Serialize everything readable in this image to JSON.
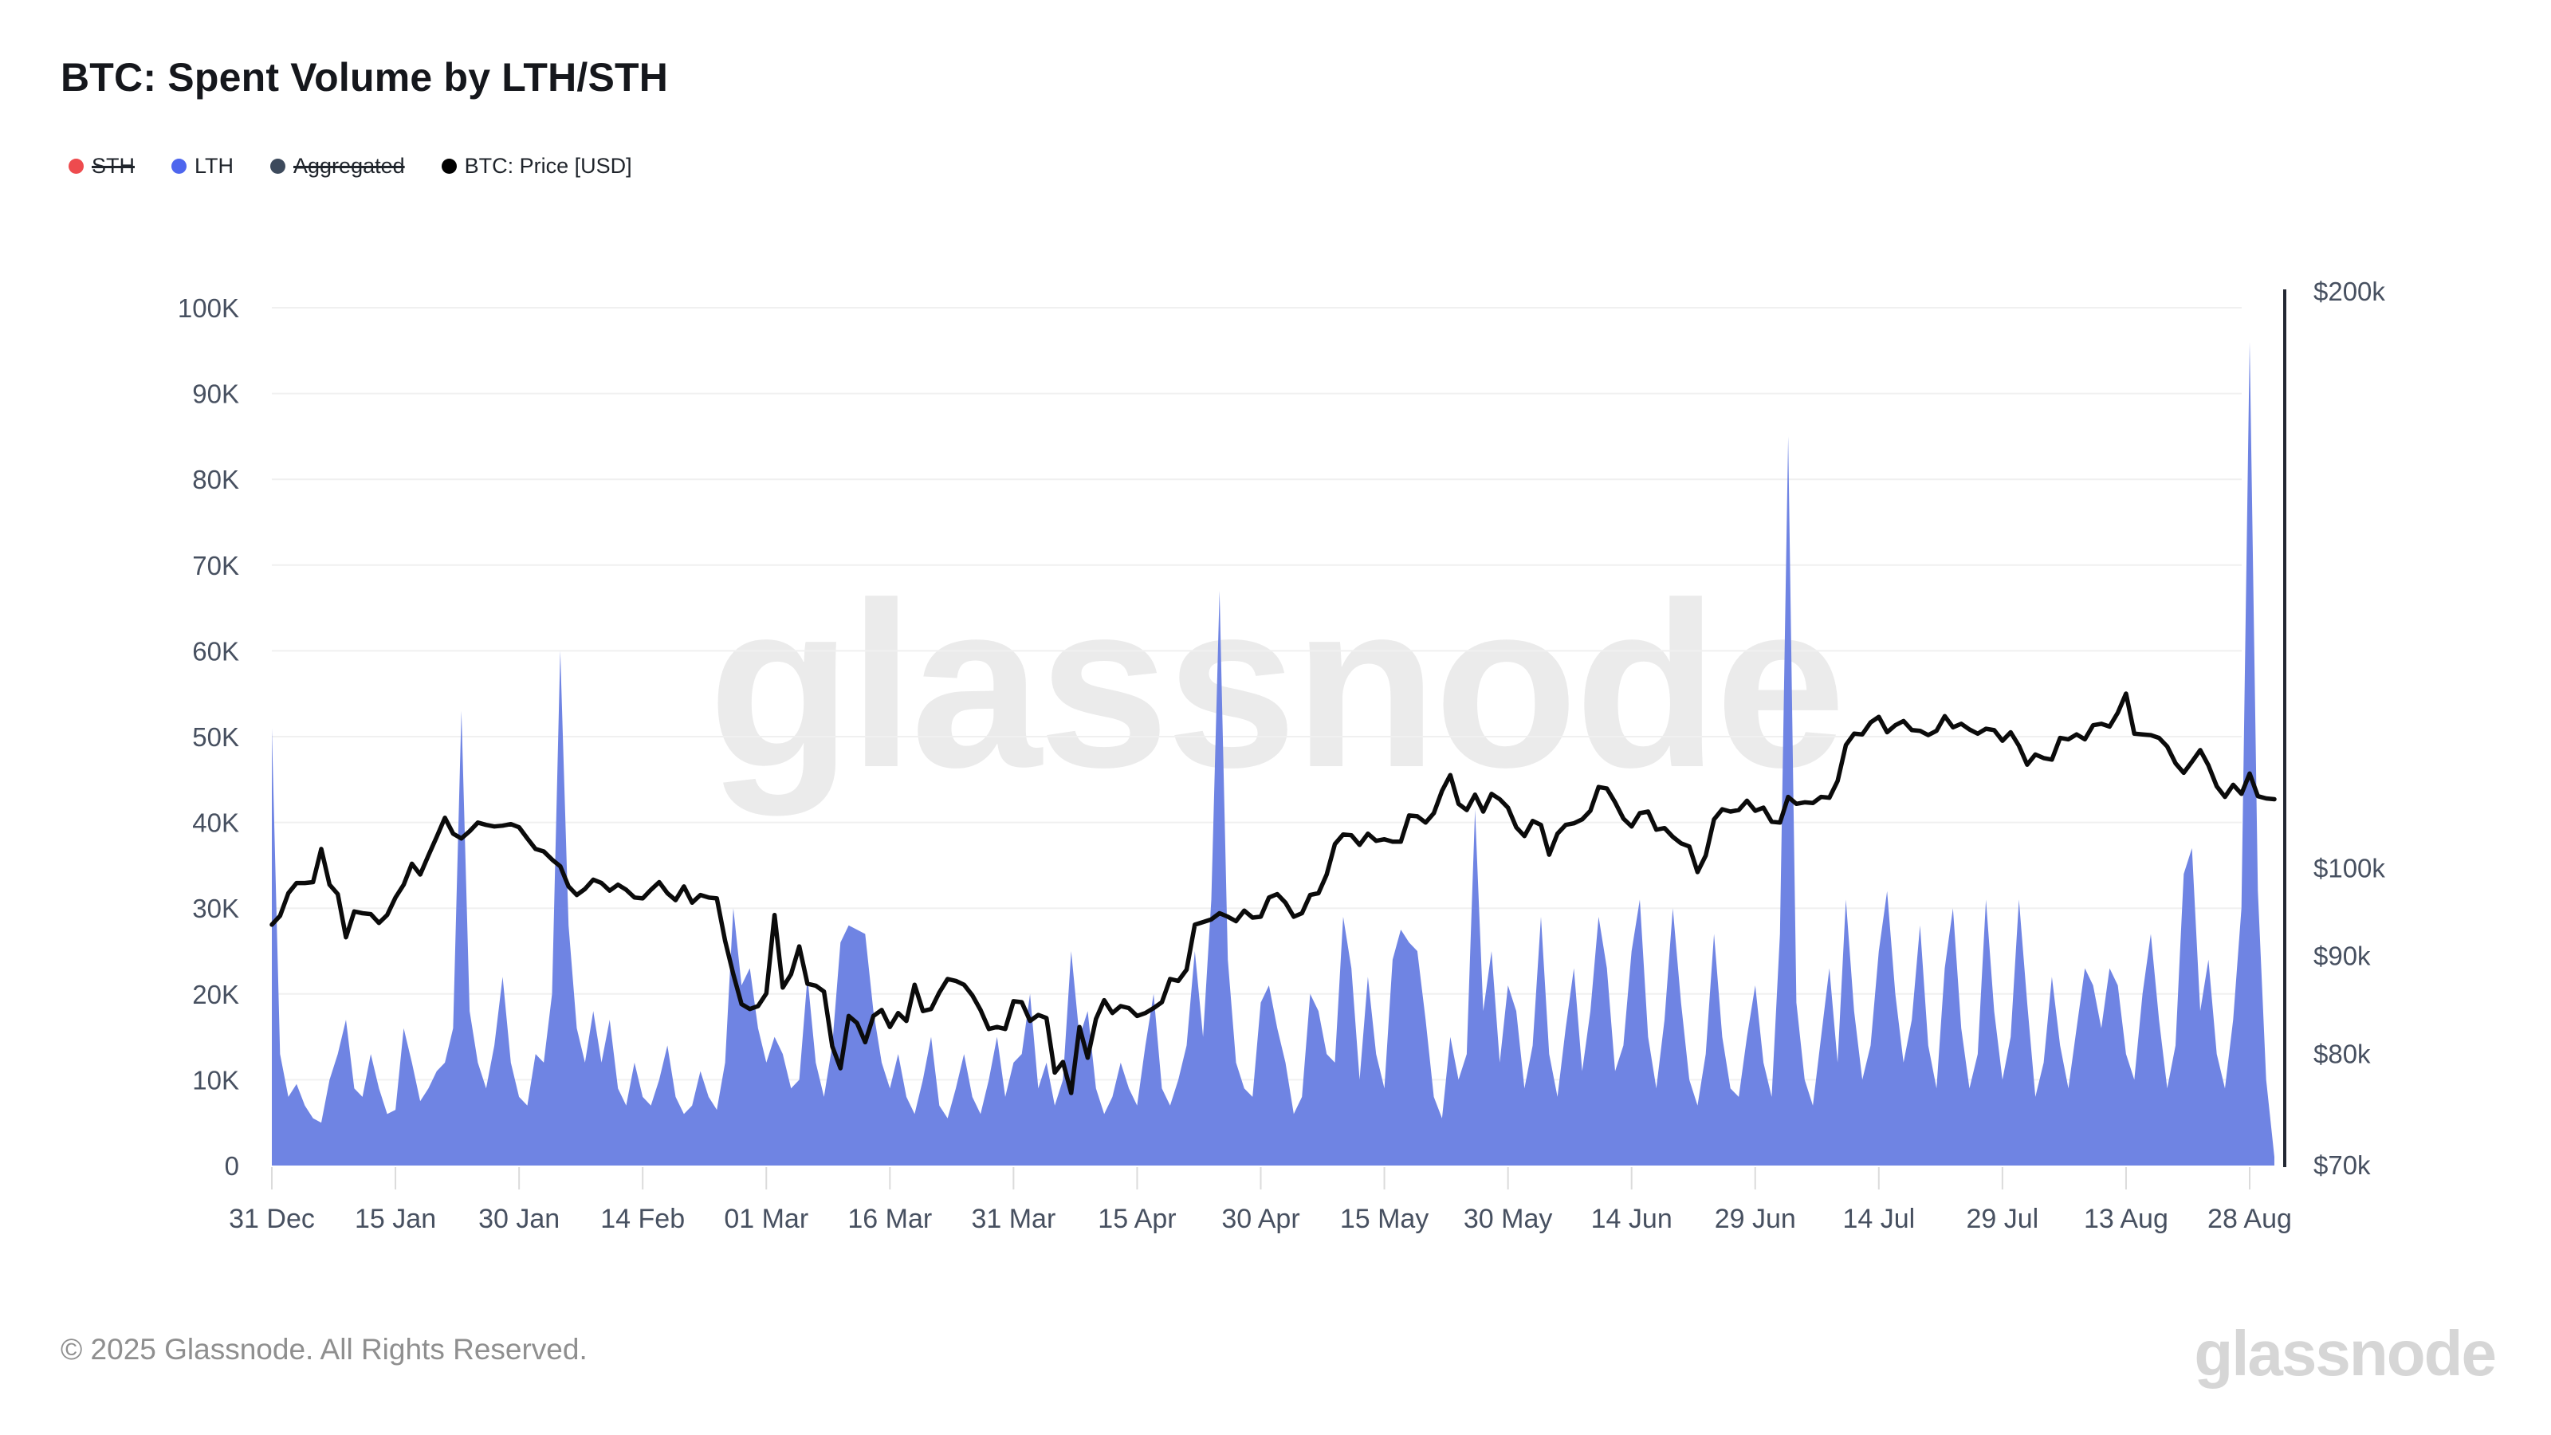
{
  "header": {
    "title": "BTC: Spent Volume by LTH/STH"
  },
  "legend": {
    "items": [
      {
        "label": "STH",
        "color": "#EE4B4E",
        "strikethrough": true
      },
      {
        "label": "LTH",
        "color": "#4E66EE",
        "strikethrough": false
      },
      {
        "label": "Aggregated",
        "color": "#3D4A5C",
        "strikethrough": true
      },
      {
        "label": "BTC: Price [USD]",
        "color": "#000000",
        "strikethrough": false
      }
    ]
  },
  "watermark": "glassnode",
  "footer": {
    "copyright": "© 2025 Glassnode. All Rights Reserved.",
    "brand": "glassnode"
  },
  "colors": {
    "lth_area": "#6F84E3",
    "price_line": "#0B0B0B",
    "grid": "#F0F0F0",
    "axis_label": "#475060",
    "tick_mark": "#DBDBDB",
    "right_axis_line": "#232833",
    "watermark": "#EBEBEB"
  },
  "chart_data": {
    "type": "area",
    "title": "BTC: Spent Volume by LTH/STH",
    "grid": true,
    "legend_position": "top-left",
    "x_axis": {
      "tick_labels": [
        "31 Dec",
        "15 Jan",
        "30 Jan",
        "14 Feb",
        "01 Mar",
        "16 Mar",
        "31 Mar",
        "15 Apr",
        "30 Apr",
        "15 May",
        "30 May",
        "14 Jun",
        "29 Jun",
        "14 Jul",
        "29 Jul",
        "13 Aug",
        "28 Aug"
      ],
      "tick_day_index": [
        0,
        15,
        30,
        45,
        60,
        75,
        90,
        105,
        120,
        135,
        150,
        165,
        180,
        195,
        210,
        225,
        240
      ],
      "days_total": 244
    },
    "left_axis": {
      "name": "Spent Volume",
      "unit": "BTC",
      "scale": "linear",
      "lim_k": [
        0,
        100
      ],
      "tick_labels": [
        "0",
        "10K",
        "20K",
        "30K",
        "40K",
        "50K",
        "60K",
        "70K",
        "80K",
        "90K",
        "100K"
      ],
      "tick_values_k": [
        0,
        10,
        20,
        30,
        40,
        50,
        60,
        70,
        80,
        90,
        100
      ]
    },
    "right_axis": {
      "name": "BTC: Price [USD]",
      "unit": "USD",
      "scale": "log",
      "lim_k": [
        70,
        200
      ],
      "tick_labels": [
        "$70k",
        "$80k",
        "$90k",
        "$100k",
        "$200k"
      ],
      "tick_values_k": [
        70,
        80,
        90,
        100,
        200
      ]
    },
    "series": [
      {
        "name": "LTH",
        "type": "area",
        "color": "#6F84E3",
        "values_unit": "thousand BTC",
        "values": [
          51,
          13,
          8,
          9.5,
          7,
          5.5,
          5,
          10,
          13,
          17,
          9,
          8,
          13,
          9,
          6,
          6.5,
          16,
          12,
          7.5,
          9,
          11,
          12,
          16,
          53,
          18,
          12,
          9,
          14,
          22,
          12,
          8,
          7,
          13,
          12,
          20,
          60,
          28,
          16,
          12,
          18,
          12,
          17,
          9,
          7,
          12,
          8,
          7,
          10,
          14,
          8,
          6,
          7,
          11,
          8,
          6.5,
          12,
          30,
          21,
          23,
          16,
          12,
          15,
          13,
          9,
          10,
          22,
          12,
          8,
          14,
          26,
          28,
          27.5,
          27,
          18,
          12,
          9,
          13,
          8,
          6,
          10,
          15,
          7,
          5.5,
          9,
          13,
          8,
          6,
          10,
          15,
          8,
          12,
          13,
          20,
          9,
          12,
          7,
          10,
          25,
          15,
          18,
          9,
          6,
          8,
          12,
          9,
          7,
          14,
          20,
          9,
          7,
          10,
          14,
          25,
          15,
          31,
          67,
          24,
          12,
          9,
          8,
          19,
          21,
          16,
          12,
          6,
          8,
          20,
          18,
          13,
          12,
          29,
          23,
          10,
          22,
          13,
          9,
          24,
          27.5,
          26,
          25,
          17,
          8,
          5.5,
          15,
          10,
          13,
          41.5,
          18,
          25,
          12,
          21,
          18,
          9,
          14,
          29,
          13,
          8,
          16,
          23,
          11,
          18,
          29,
          23,
          11,
          14,
          25,
          31,
          15,
          9,
          17,
          30,
          19,
          10,
          7,
          13,
          27,
          15,
          9,
          8,
          15,
          21,
          12,
          8,
          27,
          85,
          19,
          10,
          7,
          15,
          23,
          12,
          31,
          18,
          10,
          14,
          25,
          32,
          20,
          12,
          17,
          28,
          14,
          9,
          23,
          30,
          16,
          9,
          13,
          31,
          18,
          10,
          15,
          31,
          19,
          8,
          12,
          22,
          14,
          9,
          16,
          23,
          21,
          16,
          23,
          21,
          13,
          10,
          20,
          27,
          17,
          9,
          14,
          34,
          37,
          18,
          24,
          13,
          9,
          17,
          30,
          96,
          32,
          10,
          1
        ]
      },
      {
        "name": "BTC: Price [USD]",
        "type": "line",
        "color": "#0B0B0B",
        "values_unit": "thousand USD",
        "values": [
          93.4,
          94.4,
          97,
          98.2,
          98.2,
          98.3,
          102.3,
          98,
          96.9,
          92,
          94.9,
          94.7,
          94.6,
          93.6,
          94.5,
          96.5,
          98,
          100.5,
          99.2,
          101.5,
          103.8,
          106.2,
          104.2,
          103.6,
          104.5,
          105.6,
          105.3,
          105.1,
          105.2,
          105.4,
          105,
          103.6,
          102.3,
          102,
          101,
          100.2,
          97.8,
          96.8,
          97.5,
          98.6,
          98.2,
          97.3,
          98,
          97.4,
          96.5,
          96.4,
          97.4,
          98.3,
          97,
          96.2,
          97.8,
          95.9,
          96.8,
          96.5,
          96.4,
          91.6,
          88,
          84.9,
          84.4,
          84.7,
          86,
          94.5,
          86.6,
          88,
          91,
          87,
          86.8,
          86.2,
          80.7,
          78.6,
          83.7,
          83,
          81.1,
          83.7,
          84.3,
          82.6,
          84,
          83.2,
          86.9,
          84.2,
          84.4,
          86.1,
          87.5,
          87.3,
          86.9,
          85.8,
          84.3,
          82.4,
          82.6,
          82.4,
          85.2,
          85.1,
          83.2,
          83.8,
          83.5,
          78.2,
          79.2,
          76.3,
          82.6,
          79.6,
          83.4,
          85.3,
          84,
          84.7,
          84.5,
          83.7,
          84,
          84.5,
          85.1,
          87.5,
          87.3,
          88.5,
          93.4,
          93.7,
          94,
          94.7,
          94.3,
          93.8,
          95,
          94.2,
          94.3,
          96.5,
          96.9,
          95.9,
          94.3,
          94.7,
          96.8,
          97,
          99.2,
          102.9,
          104.1,
          104,
          102.8,
          104.2,
          103.3,
          103.5,
          103.2,
          103.2,
          106.5,
          106.4,
          105.6,
          106.8,
          109.7,
          111.8,
          108,
          107.2,
          109.2,
          107,
          109.3,
          108.6,
          107.5,
          105,
          103.9,
          105.8,
          105.3,
          101.6,
          104.2,
          105.3,
          105.5,
          106,
          107.1,
          110.2,
          110,
          108.2,
          106.1,
          105.1,
          106.8,
          107,
          104.7,
          104.9,
          103.8,
          103,
          102.6,
          99.5,
          101.5,
          106,
          107.3,
          107,
          107.2,
          108.4,
          107.1,
          107.5,
          105.7,
          105.6,
          108.9,
          108,
          108.2,
          108.1,
          108.9,
          108.8,
          111,
          115.9,
          117.5,
          117.4,
          119.1,
          119.9,
          117.7,
          118.7,
          119.3,
          118,
          117.9,
          117.3,
          117.9,
          120,
          118.4,
          118.9,
          118.1,
          117.5,
          118.2,
          118,
          116.5,
          117.7,
          115.8,
          113.2,
          114.6,
          114.1,
          113.9,
          116.9,
          116.7,
          117.4,
          116.7,
          118.7,
          118.9,
          118.5,
          120.5,
          123.3,
          117.5,
          117.4,
          117.3,
          116.9,
          115.7,
          113.4,
          112.1,
          113.6,
          115.2,
          113.1,
          110.3,
          108.9,
          110.5,
          109.3,
          112,
          109,
          108.7,
          108.6
        ]
      }
    ]
  }
}
